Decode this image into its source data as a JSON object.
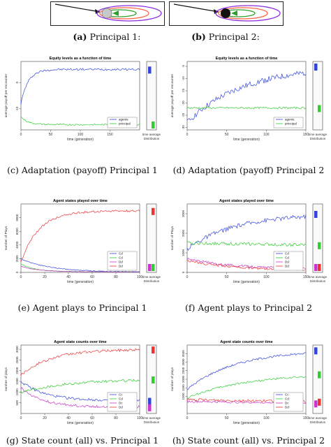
{
  "top": {
    "a": {
      "tag": "(a)",
      "label": "Principal 1:"
    },
    "b": {
      "tag": "(b)",
      "label": "Principal 2:"
    },
    "colors": {
      "principal1": "#c8c8c8",
      "principal2": "#111111",
      "arrow": "#111111",
      "ring1": "#2ca02c",
      "ring2": "#ff6347",
      "ring3": "#8a2be2"
    }
  },
  "captions": {
    "c": {
      "tag": "(c)",
      "text": "Adaptation (payoff) Principal 1"
    },
    "d": {
      "tag": "(d)",
      "text": "Adaptation (payoff) Principal 2"
    },
    "e": {
      "tag": "(e)",
      "text": "Agent plays to Principal 1"
    },
    "f": {
      "tag": "(f)",
      "text": "Agent plays to Principal 2"
    },
    "g": {
      "tag": "(g)",
      "text": "State count (all) vs. Principal 1"
    },
    "h": {
      "tag": "(h)",
      "text": "State count (all) vs. Principal 2"
    }
  },
  "side_labels": {
    "time_avg": "time average",
    "dist": "Distribution"
  },
  "chart_data": [
    {
      "id": "c",
      "type": "line",
      "title": "Equity levels as a function of time",
      "xlabel": "time (generation)",
      "ylabel": "average payoff per encounter",
      "xlim": [
        0,
        200
      ],
      "ylim": [
        -18,
        8
      ],
      "xticks": [
        0,
        50,
        100,
        150
      ],
      "yticks": [
        -10,
        0
      ],
      "legend": [
        "agents",
        "principal"
      ],
      "legend_pos": "bottom-right",
      "series": [
        {
          "name": "agents",
          "color": "#3344dd",
          "shape": "rise",
          "start": -8,
          "end": 5,
          "k": 12,
          "noise": 0.4
        },
        {
          "name": "principal",
          "color": "#33cc33",
          "shape": "fall",
          "start": -13,
          "end": -16,
          "k": 12,
          "noise": 0.3
        }
      ]
    },
    {
      "id": "d",
      "type": "line",
      "title": "Equity levels as a function of time",
      "xlabel": "time (generation)",
      "ylabel": "average payoff per encounter",
      "xlim": [
        0,
        150
      ],
      "ylim": [
        -31,
        -3
      ],
      "xticks": [
        0,
        50,
        100,
        150
      ],
      "yticks": [
        -30,
        -25,
        -20,
        -15,
        -10,
        -5
      ],
      "legend": [
        "agents",
        "principal"
      ],
      "legend_pos": "bottom-right",
      "series": [
        {
          "name": "agents",
          "color": "#3344dd",
          "shape": "rise",
          "start": -28,
          "end": -5,
          "k": 70,
          "noise": 1.2
        },
        {
          "name": "principal",
          "color": "#33cc33",
          "shape": "flat",
          "start": -22,
          "end": -22,
          "k": 1,
          "noise": 0.4
        }
      ]
    },
    {
      "id": "e",
      "type": "line",
      "title": "Agent states played over time",
      "xlabel": "time (generation)",
      "ylabel": "number of Plays",
      "xlim": [
        0,
        100
      ],
      "ylim": [
        0,
        10000
      ],
      "xticks": [
        0,
        20,
        40,
        60,
        80,
        100
      ],
      "yticks": [
        0,
        2000,
        4000,
        6000,
        8000
      ],
      "legend": [
        "Cd",
        "Cd",
        "Dd",
        "Dd"
      ],
      "legend_pos": "bottom-right",
      "series": [
        {
          "name": "Cd",
          "color": "#3344dd",
          "shape": "fall",
          "start": 2000,
          "end": 50,
          "k": 25,
          "noise": 60
        },
        {
          "name": "Cd",
          "color": "#33cc33",
          "shape": "fall",
          "start": 1200,
          "end": 100,
          "k": 12,
          "noise": 50
        },
        {
          "name": "Dd",
          "color": "#cc33cc",
          "shape": "fall",
          "start": 900,
          "end": 80,
          "k": 15,
          "noise": 40
        },
        {
          "name": "Dd",
          "color": "#ee3333",
          "shape": "rise",
          "start": 1500,
          "end": 9000,
          "k": 15,
          "noise": 150
        }
      ]
    },
    {
      "id": "f",
      "type": "line",
      "title": "Agent states played over time",
      "xlabel": "time (generation)",
      "ylabel": "number of Plays",
      "xlim": [
        0,
        150
      ],
      "ylim": [
        0,
        3500
      ],
      "xticks": [
        0,
        50,
        100,
        150
      ],
      "yticks": [
        0,
        1000,
        2000,
        3000
      ],
      "legend": [
        "Cd",
        "Cd",
        "Dd",
        "Dd"
      ],
      "legend_pos": "bottom-right",
      "series": [
        {
          "name": "Cd",
          "color": "#3344dd",
          "shape": "rise",
          "start": 1200,
          "end": 3000,
          "k": 60,
          "noise": 110
        },
        {
          "name": "Cd",
          "color": "#33cc33",
          "shape": "flat",
          "start": 1500,
          "end": 1400,
          "k": 1,
          "noise": 80
        },
        {
          "name": "Dd",
          "color": "#cc33cc",
          "shape": "fall",
          "start": 700,
          "end": 150,
          "k": 60,
          "noise": 60
        },
        {
          "name": "Dd",
          "color": "#ee3333",
          "shape": "fall",
          "start": 600,
          "end": 100,
          "k": 60,
          "noise": 60
        }
      ]
    },
    {
      "id": "g",
      "type": "line",
      "title": "Agent state counts over time",
      "xlabel": "time (generation)",
      "ylabel": "number of plays",
      "xlim": [
        0,
        100
      ],
      "ylim": [
        0,
        3200
      ],
      "xticks": [
        0,
        20,
        40,
        60,
        80,
        100
      ],
      "yticks": [
        500,
        1000,
        1500,
        2000,
        2500,
        3000
      ],
      "legend": [
        "Cc",
        "Cd",
        "Dc",
        "Dd"
      ],
      "legend_pos": "bottom-right",
      "series": [
        {
          "name": "Cc",
          "color": "#3344dd",
          "shape": "fall",
          "start": 1500,
          "end": 600,
          "k": 20,
          "noise": 60
        },
        {
          "name": "Cd",
          "color": "#33cc33",
          "shape": "rise",
          "start": 1000,
          "end": 1600,
          "k": 40,
          "noise": 60
        },
        {
          "name": "Dc",
          "color": "#cc33cc",
          "shape": "fall",
          "start": 1200,
          "end": 300,
          "k": 18,
          "noise": 60
        },
        {
          "name": "Dd",
          "color": "#ee3333",
          "shape": "rise",
          "start": 1800,
          "end": 3000,
          "k": 25,
          "noise": 60
        }
      ]
    },
    {
      "id": "h",
      "type": "line",
      "title": "Agent state counts over time",
      "xlabel": "time (generation)",
      "ylabel": "number of plays",
      "xlim": [
        0,
        150
      ],
      "ylim": [
        0,
        4000
      ],
      "xticks": [
        0,
        50,
        100,
        150
      ],
      "yticks": [
        1000,
        1500,
        2000,
        2500,
        3000,
        3500
      ],
      "legend": [
        "Cc",
        "Cd",
        "Dc",
        "Dd"
      ],
      "legend_pos": "bottom-right",
      "series": [
        {
          "name": "Cc",
          "color": "#3344dd",
          "shape": "rise",
          "start": 1400,
          "end": 3700,
          "k": 60,
          "noise": 60
        },
        {
          "name": "Cd",
          "color": "#33cc33",
          "shape": "rise",
          "start": 900,
          "end": 2300,
          "k": 70,
          "noise": 60
        },
        {
          "name": "Dc",
          "color": "#cc33cc",
          "shape": "flat",
          "start": 700,
          "end": 600,
          "k": 1,
          "noise": 60
        },
        {
          "name": "Dd",
          "color": "#ee3333",
          "shape": "flat",
          "start": 800,
          "end": 700,
          "k": 1,
          "noise": 80
        }
      ]
    }
  ]
}
